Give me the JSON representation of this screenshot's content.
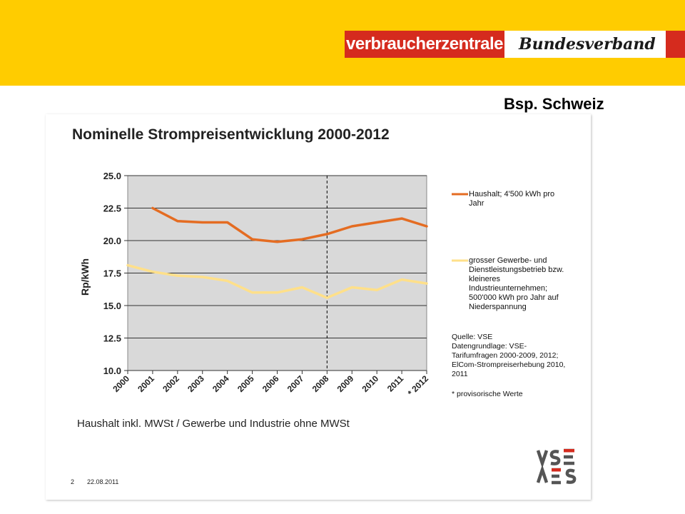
{
  "header": {
    "logo_main": "verbraucherzentrale",
    "logo_sub": "Bundesverband"
  },
  "slide_subtitle": "Bsp. Schweiz",
  "caption": "Haushalt inkl. MWSt / Gewerbe und Industrie ohne MWSt",
  "source_lines": [
    "Quelle: VSE",
    "Datengrundlage: VSE-",
    "Tarifumfragen 2000-2009, 2012;",
    "ElCom-Strompreiserhebung 2010,",
    "2011"
  ],
  "footnote": "* provisorische Werte",
  "footer": {
    "page": "2",
    "date": "22.08.2011"
  },
  "colors": {
    "topbar": "#ffcc00",
    "logo_red": "#d52b1e",
    "haushalt": "#e46c22",
    "gewerbe": "#ffe08a",
    "plot_bg": "#d9d9d9"
  },
  "chart_data": {
    "type": "line",
    "title": "Nominelle Strompreisentwicklung 2000-2012",
    "xlabel": "",
    "ylabel": "Rp/kWh",
    "categories": [
      "2000",
      "2001",
      "2002",
      "2003",
      "2004",
      "2005",
      "2006",
      "2007",
      "2008",
      "2009",
      "2010",
      "2011",
      "2012"
    ],
    "x_tick_labels": [
      "2000",
      "2001",
      "2002",
      "2003",
      "2004",
      "2005",
      "2006",
      "2007",
      "2008",
      "2009",
      "2010",
      "2011",
      "* 2012"
    ],
    "y_ticks": [
      "10.0",
      "12.5",
      "15.0",
      "17.5",
      "20.0",
      "22.5",
      "25.0"
    ],
    "ylim": [
      10,
      25
    ],
    "grid": true,
    "marker_year": "2008",
    "legend_position": "right",
    "series": [
      {
        "name": "Haushalt; 4'500 kWh pro Jahr",
        "legend_lines": [
          "Haushalt; 4'500 kWh pro",
          "Jahr"
        ],
        "color": "#e46c22",
        "values": [
          null,
          22.5,
          21.5,
          21.4,
          21.4,
          20.1,
          19.9,
          20.1,
          20.5,
          21.1,
          21.4,
          21.7,
          21.1
        ]
      },
      {
        "name": "grosser Gewerbe- und Dienstleistungsbetrieb bzw. kleineres Industrieunternehmen; 500'000 kWh pro Jahr auf Niederspannung",
        "legend_lines": [
          "grosser Gewerbe- und",
          "Dienstleistungsbetrieb bzw.",
          "kleineres",
          "Industrieunternehmen;",
          "500'000 kWh pro Jahr auf",
          "Niederspannung"
        ],
        "color": "#ffe08a",
        "values": [
          18.1,
          17.6,
          17.3,
          17.2,
          16.9,
          16.0,
          16.0,
          16.4,
          15.6,
          16.4,
          16.2,
          17.0,
          16.7
        ]
      }
    ]
  }
}
